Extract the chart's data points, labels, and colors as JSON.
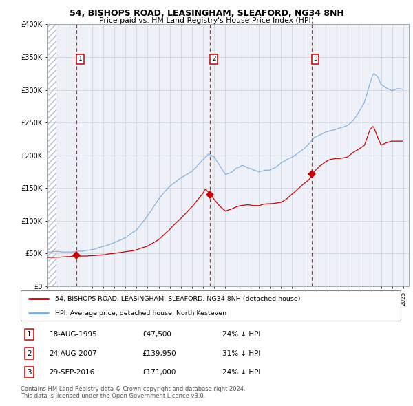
{
  "title_line1": "54, BISHOPS ROAD, LEASINGHAM, SLEAFORD, NG34 8NH",
  "title_line2": "Price paid vs. HM Land Registry's House Price Index (HPI)",
  "legend_red": "54, BISHOPS ROAD, LEASINGHAM, SLEAFORD, NG34 8NH (detached house)",
  "legend_blue": "HPI: Average price, detached house, North Kesteven",
  "transactions": [
    {
      "label": "1",
      "date": "18-AUG-1995",
      "year": 1995.62,
      "price": 47500,
      "pct": "24% ↓ HPI"
    },
    {
      "label": "2",
      "date": "24-AUG-2007",
      "year": 2007.64,
      "price": 139950,
      "pct": "31% ↓ HPI"
    },
    {
      "label": "3",
      "date": "29-SEP-2016",
      "year": 2016.75,
      "price": 171000,
      "pct": "24% ↓ HPI"
    }
  ],
  "ylabel_ticks": [
    "£0",
    "£50K",
    "£100K",
    "£150K",
    "£200K",
    "£250K",
    "£300K",
    "£350K",
    "£400K"
  ],
  "ytick_vals": [
    0,
    50000,
    100000,
    150000,
    200000,
    250000,
    300000,
    350000,
    400000
  ],
  "xmin": 1993.0,
  "xmax": 2025.5,
  "ymin": 0,
  "ymax": 400000,
  "footer_line1": "Contains HM Land Registry data © Crown copyright and database right 2024.",
  "footer_line2": "This data is licensed under the Open Government Licence v3.0.",
  "bg_color": "#eef2f8",
  "hatch_color": "#c0ccd8",
  "grid_color": "#c8d0dc",
  "red_color": "#cc0000",
  "blue_color": "#7aaadd",
  "hpi_anchors": [
    [
      1993.0,
      52000
    ],
    [
      1994.0,
      52500
    ],
    [
      1995.0,
      53000
    ],
    [
      1996.0,
      55000
    ],
    [
      1997.0,
      58000
    ],
    [
      1998.0,
      63000
    ],
    [
      1999.0,
      68000
    ],
    [
      2000.0,
      76000
    ],
    [
      2001.0,
      88000
    ],
    [
      2002.0,
      110000
    ],
    [
      2003.0,
      135000
    ],
    [
      2004.0,
      155000
    ],
    [
      2005.0,
      168000
    ],
    [
      2006.0,
      178000
    ],
    [
      2007.0,
      195000
    ],
    [
      2007.5,
      204000
    ],
    [
      2008.0,
      198000
    ],
    [
      2008.5,
      185000
    ],
    [
      2009.0,
      172000
    ],
    [
      2009.5,
      175000
    ],
    [
      2010.0,
      182000
    ],
    [
      2010.5,
      185000
    ],
    [
      2011.0,
      181000
    ],
    [
      2011.5,
      178000
    ],
    [
      2012.0,
      175000
    ],
    [
      2012.5,
      177000
    ],
    [
      2013.0,
      178000
    ],
    [
      2013.5,
      182000
    ],
    [
      2014.0,
      188000
    ],
    [
      2014.5,
      193000
    ],
    [
      2015.0,
      198000
    ],
    [
      2015.5,
      204000
    ],
    [
      2016.0,
      210000
    ],
    [
      2016.5,
      218000
    ],
    [
      2017.0,
      228000
    ],
    [
      2017.5,
      232000
    ],
    [
      2018.0,
      236000
    ],
    [
      2018.5,
      238000
    ],
    [
      2019.0,
      240000
    ],
    [
      2019.5,
      242000
    ],
    [
      2020.0,
      245000
    ],
    [
      2020.5,
      252000
    ],
    [
      2021.0,
      265000
    ],
    [
      2021.5,
      280000
    ],
    [
      2022.0,
      310000
    ],
    [
      2022.3,
      325000
    ],
    [
      2022.7,
      320000
    ],
    [
      2023.0,
      308000
    ],
    [
      2023.5,
      302000
    ],
    [
      2024.0,
      298000
    ],
    [
      2024.5,
      300000
    ]
  ],
  "red_anchors": [
    [
      1993.0,
      44000
    ],
    [
      1994.0,
      44500
    ],
    [
      1995.0,
      46000
    ],
    [
      1995.62,
      47500
    ],
    [
      1996.0,
      47000
    ],
    [
      1997.0,
      48000
    ],
    [
      1998.0,
      49500
    ],
    [
      1999.0,
      51000
    ],
    [
      2000.0,
      53000
    ],
    [
      2001.0,
      56000
    ],
    [
      2002.0,
      62000
    ],
    [
      2003.0,
      72000
    ],
    [
      2004.0,
      88000
    ],
    [
      2005.0,
      105000
    ],
    [
      2006.0,
      122000
    ],
    [
      2006.5,
      132000
    ],
    [
      2007.0,
      142000
    ],
    [
      2007.2,
      148000
    ],
    [
      2007.64,
      139950
    ],
    [
      2008.0,
      132000
    ],
    [
      2008.5,
      122000
    ],
    [
      2009.0,
      115000
    ],
    [
      2009.5,
      118000
    ],
    [
      2010.0,
      122000
    ],
    [
      2010.5,
      124000
    ],
    [
      2011.0,
      125000
    ],
    [
      2011.5,
      124000
    ],
    [
      2012.0,
      124000
    ],
    [
      2012.5,
      126000
    ],
    [
      2013.0,
      127000
    ],
    [
      2013.5,
      128000
    ],
    [
      2014.0,
      130000
    ],
    [
      2014.5,
      135000
    ],
    [
      2015.0,
      142000
    ],
    [
      2015.5,
      150000
    ],
    [
      2016.0,
      158000
    ],
    [
      2016.5,
      165000
    ],
    [
      2016.75,
      171000
    ],
    [
      2017.0,
      178000
    ],
    [
      2017.5,
      186000
    ],
    [
      2018.0,
      192000
    ],
    [
      2018.5,
      196000
    ],
    [
      2019.0,
      197000
    ],
    [
      2019.5,
      198000
    ],
    [
      2020.0,
      200000
    ],
    [
      2020.5,
      207000
    ],
    [
      2021.0,
      212000
    ],
    [
      2021.5,
      218000
    ],
    [
      2022.0,
      242000
    ],
    [
      2022.3,
      248000
    ],
    [
      2022.7,
      230000
    ],
    [
      2023.0,
      218000
    ],
    [
      2023.5,
      222000
    ],
    [
      2024.0,
      224000
    ],
    [
      2024.5,
      224000
    ]
  ]
}
